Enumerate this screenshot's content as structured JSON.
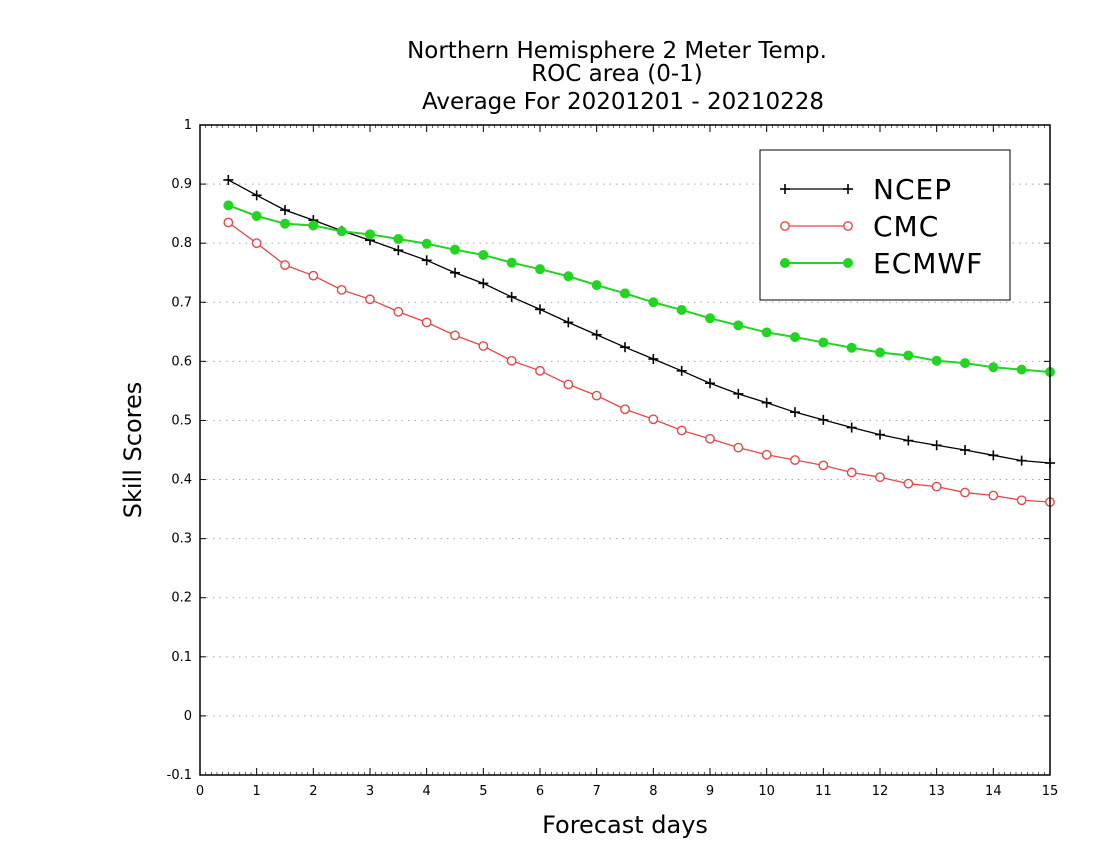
{
  "chart_data": {
    "type": "line",
    "title": [
      "Northern Hemisphere 2 Meter Temp.",
      "ROC area (0-1)",
      "Average For 20201201 - 20210228"
    ],
    "xlabel": "Forecast days",
    "ylabel": "Skill Scores",
    "xlim": [
      0,
      15
    ],
    "ylim": [
      -0.1,
      1
    ],
    "x_ticks": [
      "0",
      "1",
      "2",
      "3",
      "4",
      "5",
      "6",
      "7",
      "8",
      "9",
      "10",
      "11",
      "12",
      "13",
      "14",
      "15"
    ],
    "y_ticks": [
      "-0.1",
      "0",
      "0.1",
      "0.2",
      "0.3",
      "0.4",
      "0.5",
      "0.6",
      "0.7",
      "0.8",
      "0.9",
      "1"
    ],
    "grid": true,
    "legend_position": "top-right",
    "x": [
      0.5,
      1,
      1.5,
      2,
      2.5,
      3,
      3.5,
      4,
      4.5,
      5,
      5.5,
      6,
      6.5,
      7,
      7.5,
      8,
      8.5,
      9,
      9.5,
      10,
      10.5,
      11,
      11.5,
      12,
      12.5,
      13,
      13.5,
      14,
      14.5,
      15
    ],
    "series": [
      {
        "name": "NCEP",
        "color": "#000000",
        "marker": "plus",
        "values": [
          0.907,
          0.881,
          0.856,
          0.839,
          0.821,
          0.805,
          0.788,
          0.771,
          0.75,
          0.732,
          0.709,
          0.688,
          0.666,
          0.645,
          0.624,
          0.604,
          0.584,
          0.563,
          0.545,
          0.53,
          0.514,
          0.501,
          0.488,
          0.476,
          0.466,
          0.458,
          0.45,
          0.441,
          0.432,
          0.428
        ]
      },
      {
        "name": "CMC",
        "color": "#e8474a",
        "marker": "open-circle",
        "values": [
          0.835,
          0.8,
          0.763,
          0.745,
          0.721,
          0.705,
          0.684,
          0.666,
          0.644,
          0.626,
          0.601,
          0.584,
          0.561,
          0.542,
          0.519,
          0.502,
          0.483,
          0.469,
          0.454,
          0.442,
          0.433,
          0.424,
          0.412,
          0.404,
          0.393,
          0.388,
          0.378,
          0.373,
          0.365,
          0.362
        ]
      },
      {
        "name": "ECMWF",
        "color": "#22d522",
        "marker": "filled-circle",
        "values": [
          0.864,
          0.846,
          0.833,
          0.83,
          0.82,
          0.815,
          0.807,
          0.799,
          0.789,
          0.78,
          0.767,
          0.756,
          0.744,
          0.729,
          0.715,
          0.7,
          0.687,
          0.673,
          0.661,
          0.649,
          0.641,
          0.632,
          0.623,
          0.615,
          0.61,
          0.601,
          0.597,
          0.59,
          0.586,
          0.582
        ]
      }
    ]
  }
}
